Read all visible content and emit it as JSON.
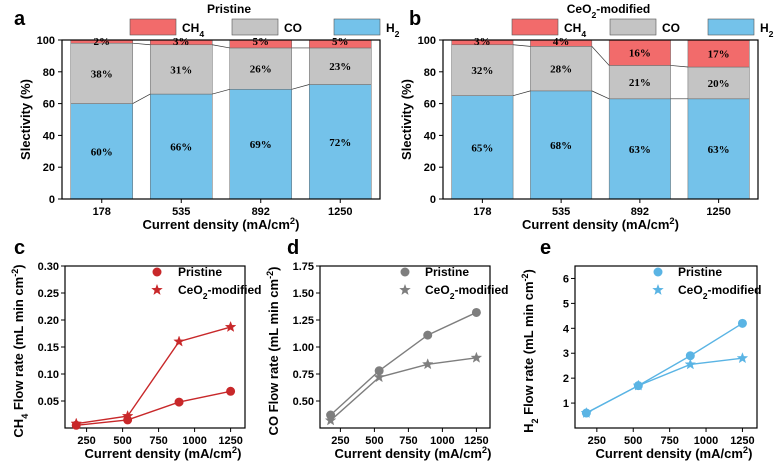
{
  "colors": {
    "ch4": "#f26b6b",
    "co": "#c4c4c4",
    "h2": "#74c2ea",
    "line_red": "#c8282a",
    "line_gray": "#7e7e7e",
    "line_blue": "#5ab4e4"
  },
  "chart_data": [
    {
      "panel": "a",
      "type": "bar",
      "stacked": true,
      "title": "Pristine",
      "categories": [
        "178",
        "535",
        "892",
        "1250"
      ],
      "series": [
        {
          "name": "H2",
          "key": "h2",
          "values": [
            60,
            66,
            69,
            72
          ],
          "labels": [
            "60%",
            "66%",
            "69%",
            "72%"
          ]
        },
        {
          "name": "CO",
          "key": "co",
          "values": [
            38,
            31,
            26,
            23
          ],
          "labels": [
            "38%",
            "31%",
            "26%",
            "23%"
          ]
        },
        {
          "name": "CH4",
          "key": "ch4",
          "values": [
            2,
            3,
            5,
            5
          ],
          "labels": [
            "2%",
            "3%",
            "5%",
            "5%"
          ]
        }
      ],
      "xlabel": "Current density (mA/cm2)",
      "ylabel": "Slectivity (%)",
      "ylim": [
        0,
        100
      ],
      "yticks": [
        "0",
        "20",
        "40",
        "60",
        "80",
        "100"
      ],
      "legend": {
        "ch4": "CH4",
        "co": "CO",
        "h2": "H2"
      }
    },
    {
      "panel": "b",
      "type": "bar",
      "stacked": true,
      "title": "CeO2-modified",
      "categories": [
        "178",
        "535",
        "892",
        "1250"
      ],
      "series": [
        {
          "name": "H2",
          "key": "h2",
          "values": [
            65,
            68,
            63,
            63
          ],
          "labels": [
            "65%",
            "68%",
            "63%",
            "63%"
          ]
        },
        {
          "name": "CO",
          "key": "co",
          "values": [
            32,
            28,
            21,
            20
          ],
          "labels": [
            "32%",
            "28%",
            "21%",
            "20%"
          ]
        },
        {
          "name": "CH4",
          "key": "ch4",
          "values": [
            3,
            4,
            16,
            17
          ],
          "labels": [
            "3%",
            "4%",
            "16%",
            "17%"
          ]
        }
      ],
      "xlabel": "Current density (mA/cm2)",
      "ylabel": "Slectivity (%)",
      "ylim": [
        0,
        100
      ],
      "yticks": [
        "0",
        "20",
        "40",
        "60",
        "80",
        "100"
      ],
      "legend": {
        "ch4": "CH4",
        "co": "CO",
        "h2": "H2"
      }
    },
    {
      "panel": "c",
      "type": "line",
      "color": "line_red",
      "x": [
        178,
        535,
        892,
        1250
      ],
      "series": [
        {
          "name": "Pristine",
          "marker": "circle",
          "values": [
            0.005,
            0.015,
            0.048,
            0.068
          ]
        },
        {
          "name": "CeO2-modified",
          "marker": "star",
          "values": [
            0.008,
            0.022,
            0.16,
            0.187
          ]
        }
      ],
      "xlabel": "Current density (mA/cm2)",
      "ylabel": "CH4 Flow rate (mL min cm-2)",
      "xlim": [
        100,
        1350
      ],
      "ylim": [
        0,
        0.3
      ],
      "xticks": [
        "250",
        "500",
        "750",
        "1000",
        "1250"
      ],
      "yticks": [
        "0.05",
        "0.10",
        "0.15",
        "0.20",
        "0.25",
        "0.30"
      ]
    },
    {
      "panel": "d",
      "type": "line",
      "color": "line_gray",
      "x": [
        178,
        535,
        892,
        1250
      ],
      "series": [
        {
          "name": "Pristine",
          "marker": "circle",
          "values": [
            0.37,
            0.78,
            1.11,
            1.32
          ]
        },
        {
          "name": "CeO2-modified",
          "marker": "star",
          "values": [
            0.32,
            0.72,
            0.84,
            0.9
          ]
        }
      ],
      "xlabel": "Current density (mA/cm2)",
      "ylabel": "CO Flow rate (mL min cm-2)",
      "xlim": [
        100,
        1350
      ],
      "ylim": [
        0.25,
        1.75
      ],
      "xticks": [
        "250",
        "500",
        "750",
        "1000",
        "1250"
      ],
      "yticks": [
        "0.50",
        "0.75",
        "1.00",
        "1.25",
        "1.50",
        "1.75"
      ]
    },
    {
      "panel": "e",
      "type": "line",
      "color": "line_blue",
      "x": [
        178,
        535,
        892,
        1250
      ],
      "series": [
        {
          "name": "Pristine",
          "marker": "circle",
          "values": [
            0.6,
            1.7,
            2.9,
            4.2
          ]
        },
        {
          "name": "CeO2-modified",
          "marker": "star",
          "values": [
            0.6,
            1.7,
            2.55,
            2.8
          ]
        }
      ],
      "xlabel": "Current density (mA/cm2)",
      "ylabel": "H2 Flow rate (mL min cm-2)",
      "xlim": [
        100,
        1350
      ],
      "ylim": [
        0,
        6.5
      ],
      "xticks": [
        "250",
        "500",
        "750",
        "1000",
        "1250"
      ],
      "yticks": [
        "1",
        "2",
        "3",
        "4",
        "5",
        "6"
      ]
    }
  ]
}
